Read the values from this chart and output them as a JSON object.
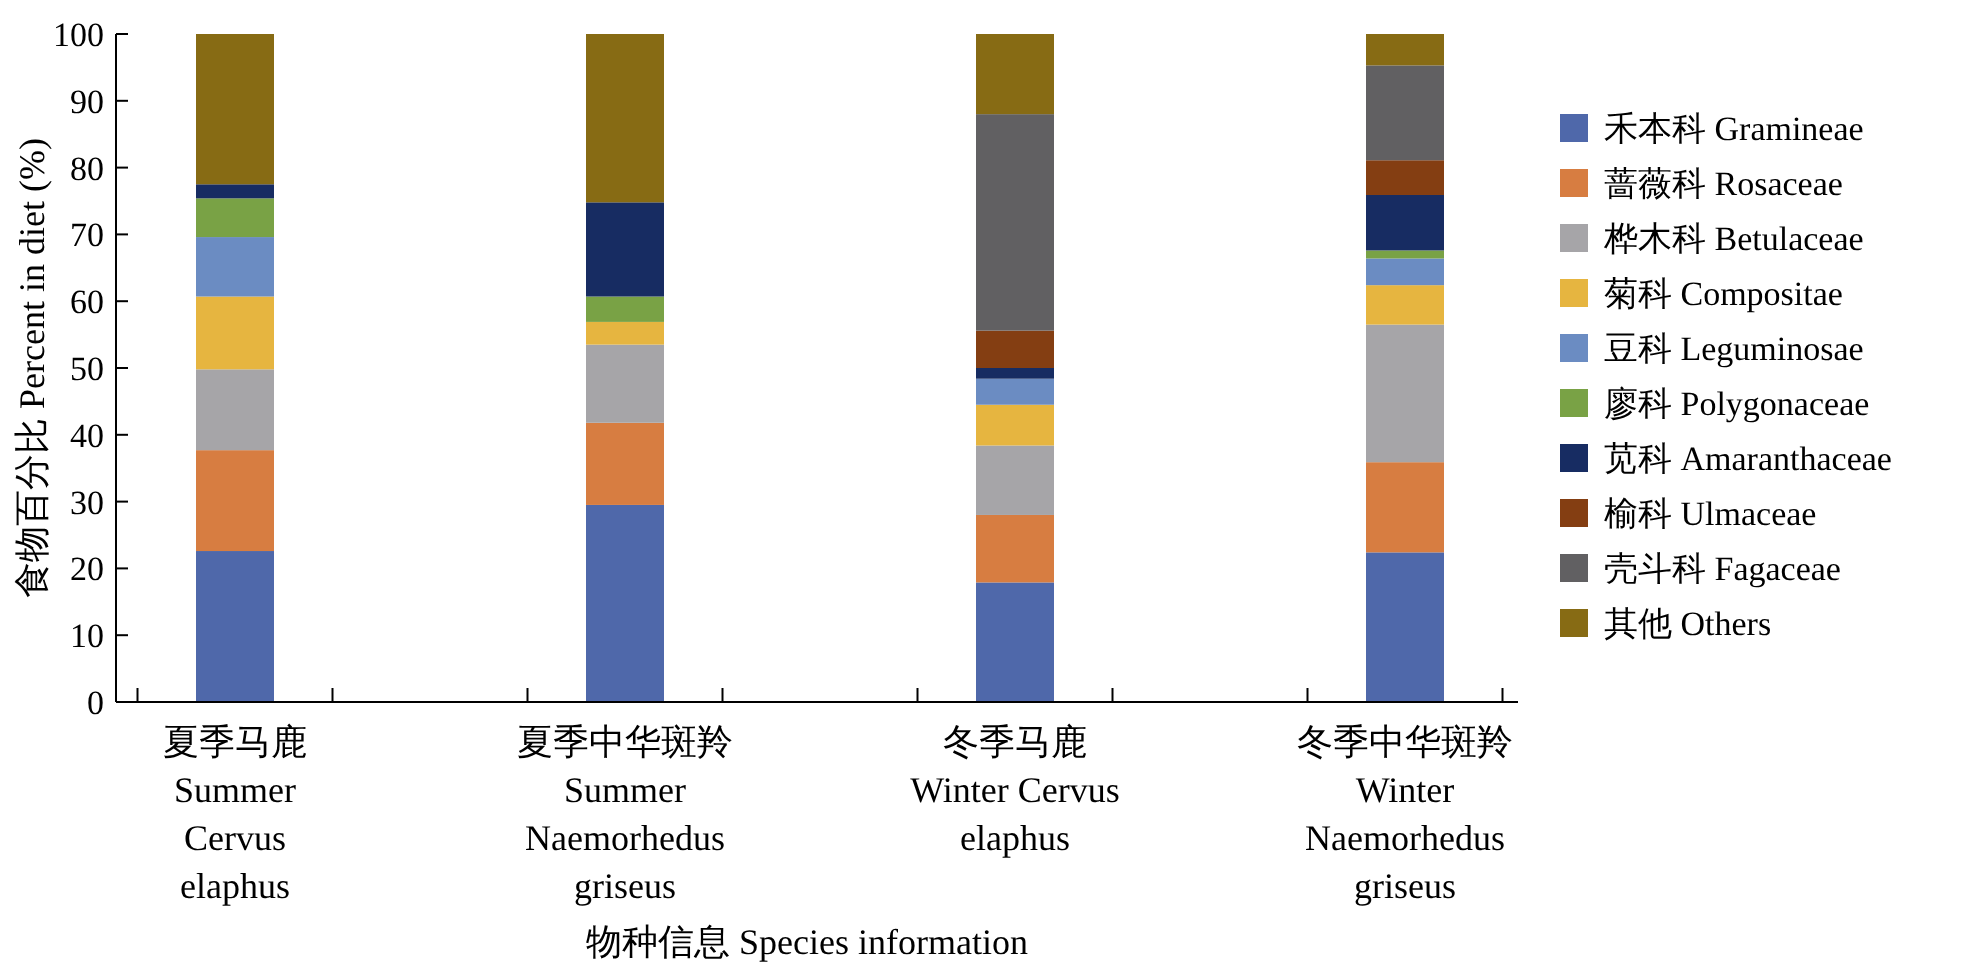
{
  "chart_data": {
    "type": "bar",
    "stacked": true,
    "xlabel": "物种信息 Species information",
    "ylabel": "食物百分比 Percent in diet (%)",
    "categories": [
      "夏季马鹿\nSummer\nCervus\nelaphus",
      "夏季中华斑羚\nSummer\nNaemorhedus\ngriseus",
      "冬季马鹿\nWinter Cervus\nelaphus",
      "冬季中华斑羚\nWinter\nNaemorhedus\ngriseus"
    ],
    "series": [
      {
        "name": "禾本科 Gramineae",
        "color": "#4f68aa",
        "values": [
          22.6,
          29.5,
          17.9,
          22.4
        ]
      },
      {
        "name": "蔷薇科 Rosaceae",
        "color": "#d77d41",
        "values": [
          15.1,
          12.3,
          10.1,
          13.5
        ]
      },
      {
        "name": "桦木科 Betulaceae",
        "color": "#a6a5a8",
        "values": [
          12.1,
          11.7,
          10.4,
          20.6
        ]
      },
      {
        "name": "菊科 Compositae",
        "color": "#e6b540",
        "values": [
          10.9,
          3.4,
          6.1,
          5.9
        ]
      },
      {
        "name": "豆科 Leguminosae",
        "color": "#6b8cc2",
        "values": [
          8.9,
          0,
          3.9,
          4.0
        ]
      },
      {
        "name": "廖科 Polygonaceae",
        "color": "#79a245",
        "values": [
          5.8,
          3.8,
          0,
          1.2
        ]
      },
      {
        "name": "苋科 Amaranthaceae",
        "color": "#172c62",
        "values": [
          2.1,
          14.1,
          1.6,
          8.3
        ]
      },
      {
        "name": "榆科 Ulmaceae",
        "color": "#843e12",
        "values": [
          0,
          0,
          5.6,
          5.2
        ]
      },
      {
        "name": "壳斗科 Fagaceae",
        "color": "#616062",
        "values": [
          0,
          0,
          32.4,
          14.2
        ]
      },
      {
        "name": "其他 Others",
        "color": "#876b14",
        "values": [
          22.5,
          25.2,
          12.0,
          4.7
        ]
      }
    ],
    "ylim": [
      0,
      100
    ],
    "yticks": [
      0,
      10,
      20,
      30,
      40,
      50,
      60,
      70,
      80,
      90,
      100
    ],
    "grid": false,
    "legend": "right"
  }
}
